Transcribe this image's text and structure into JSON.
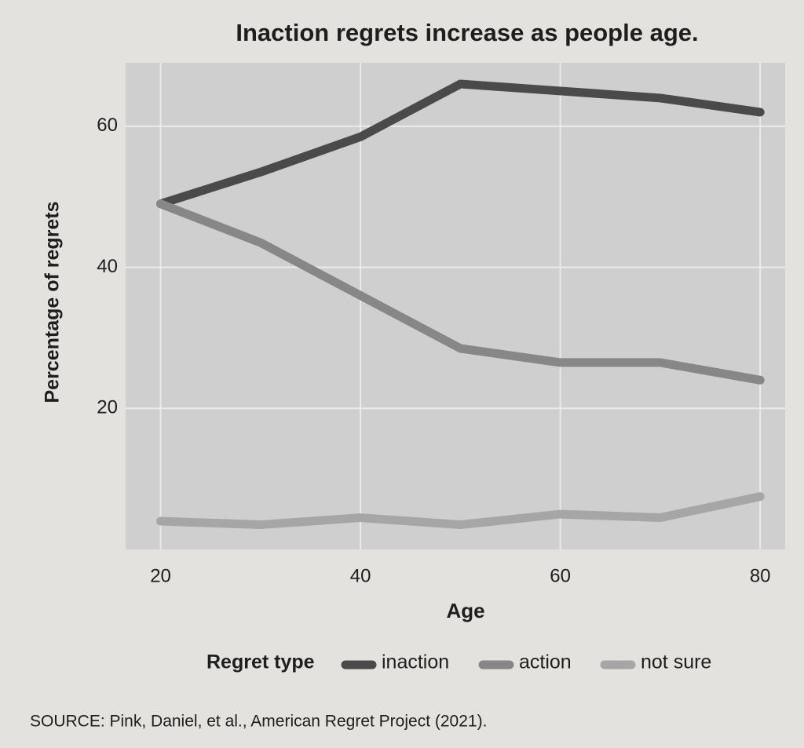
{
  "chart_data": {
    "type": "line",
    "title": "Inaction regrets increase as people age.",
    "x_label": "Age",
    "y_label": "Percentage of regrets",
    "x": [
      20,
      30,
      40,
      50,
      60,
      70,
      80
    ],
    "series": [
      {
        "name": "inaction",
        "color": "#4a4a4a",
        "values": [
          49,
          53.5,
          58.5,
          66,
          65,
          64,
          62
        ]
      },
      {
        "name": "action",
        "color": "#878787",
        "values": [
          49,
          43.5,
          36,
          28.5,
          26.5,
          26.5,
          24
        ]
      },
      {
        "name": "not sure",
        "color": "#a6a6a6",
        "values": [
          4,
          3.5,
          4.5,
          3.5,
          5,
          4.5,
          7.5
        ]
      }
    ],
    "xlim": [
      16.5,
      82.5
    ],
    "ylim": [
      0,
      69
    ],
    "xticks": [
      20,
      40,
      60,
      80
    ],
    "yticks": [
      20,
      40,
      60
    ],
    "grid": true,
    "legend_title": "Regret type",
    "legend_position": "bottom",
    "source": "SOURCE: Pink, Daniel, et al., American Regret Project (2021)."
  }
}
